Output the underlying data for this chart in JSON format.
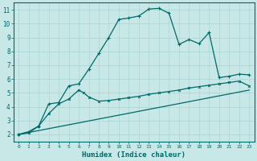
{
  "xlabel": "Humidex (Indice chaleur)",
  "bg_color": "#c8e8e8",
  "grid_color": "#b0d8d8",
  "line_color": "#006868",
  "xlim": [
    -0.5,
    23.5
  ],
  "ylim": [
    1.5,
    11.5
  ],
  "xticks": [
    0,
    1,
    2,
    3,
    4,
    5,
    6,
    7,
    8,
    9,
    10,
    11,
    12,
    13,
    14,
    15,
    16,
    17,
    18,
    19,
    20,
    21,
    22,
    23
  ],
  "yticks": [
    2,
    3,
    4,
    5,
    6,
    7,
    8,
    9,
    10,
    11
  ],
  "line1_x": [
    0,
    1,
    2,
    3,
    4,
    5,
    6,
    7,
    8,
    9,
    10,
    11,
    12,
    13,
    14,
    15,
    16,
    17,
    18,
    19,
    20,
    21,
    22,
    23
  ],
  "line1_y": [
    2.0,
    2.2,
    2.6,
    4.2,
    4.3,
    5.5,
    5.65,
    6.7,
    7.85,
    9.0,
    10.3,
    10.4,
    10.55,
    11.05,
    11.1,
    10.75,
    8.5,
    8.85,
    8.55,
    9.35,
    6.1,
    6.2,
    6.35,
    6.3
  ],
  "line2_x": [
    0,
    1,
    2,
    3,
    4,
    5,
    6,
    6.5,
    7,
    8,
    9,
    10,
    11,
    12,
    13,
    14,
    15,
    16,
    17,
    18,
    19,
    20,
    21,
    22,
    23
  ],
  "line2_y": [
    2.0,
    2.1,
    2.6,
    3.5,
    4.2,
    4.55,
    5.2,
    5.0,
    4.7,
    4.4,
    4.45,
    4.55,
    4.65,
    4.75,
    4.9,
    5.0,
    5.1,
    5.2,
    5.35,
    5.45,
    5.55,
    5.65,
    5.75,
    5.85,
    5.5
  ],
  "line3_x": [
    0,
    23
  ],
  "line3_y": [
    2.0,
    5.2
  ]
}
